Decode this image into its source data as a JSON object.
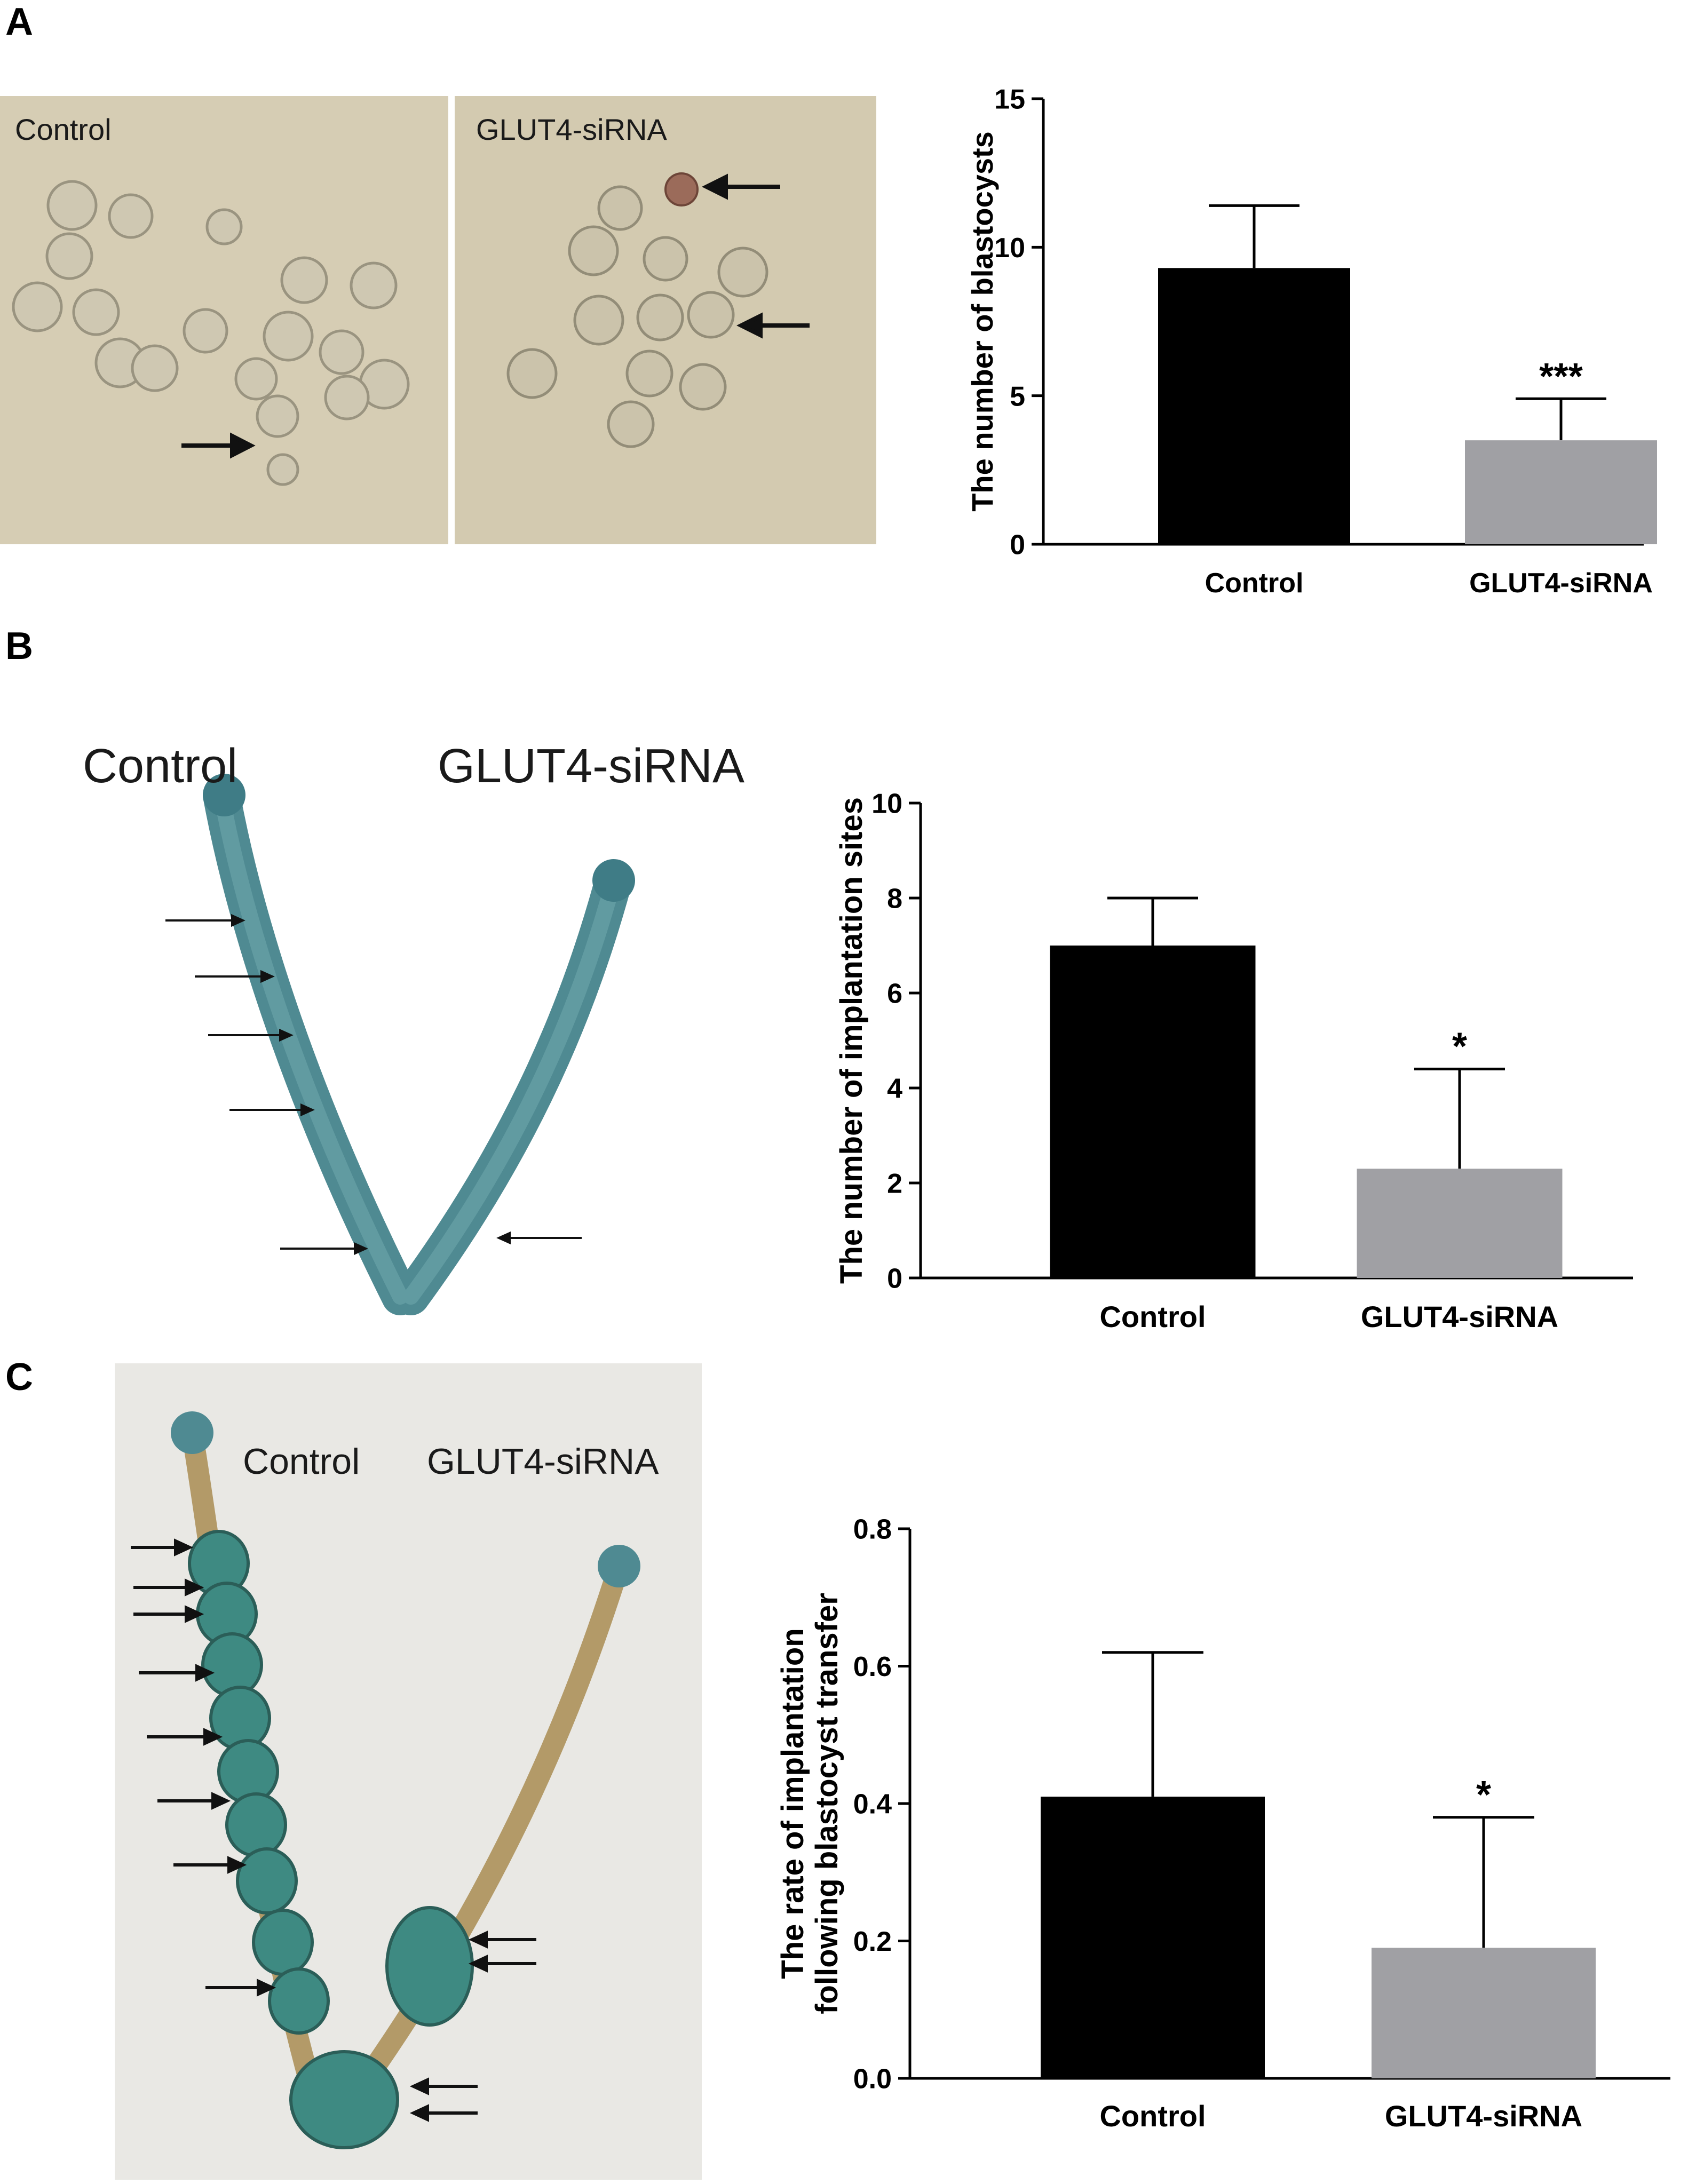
{
  "panels": [
    {
      "letter": "A",
      "photo_labels": [
        "Control",
        "GLUT4-siRNA"
      ]
    },
    {
      "letter": "B",
      "photo_labels": [
        "Control",
        "GLUT4-siRNA"
      ]
    },
    {
      "letter": "C",
      "photo_labels": [
        "Control",
        "GLUT4-siRNA"
      ]
    }
  ],
  "colors": {
    "control_bar": "#000000",
    "sirna_bar": "#a0a0a4",
    "blastocyst_bg": "#d6cdb4",
    "uterus_bg_b": "#ffffff",
    "uterus_bg_c": "#e9e8e4",
    "uterus_blue": "#4f8a92"
  },
  "chart_data": [
    {
      "type": "bar",
      "categories": [
        "Control",
        "GLUT4-siRNA"
      ],
      "values": [
        9.3,
        3.5
      ],
      "errors": [
        2.1,
        1.4
      ],
      "significance": [
        "",
        "***"
      ],
      "ylabel": "The number of blastocysts",
      "ylim": [
        0,
        15
      ],
      "yticks": [
        0,
        5,
        10,
        15
      ],
      "ytick_labels": [
        "0",
        "5",
        "10",
        "15"
      ]
    },
    {
      "type": "bar",
      "categories": [
        "Control",
        "GLUT4-siRNA"
      ],
      "values": [
        7.0,
        2.3
      ],
      "errors": [
        1.0,
        2.1
      ],
      "significance": [
        "",
        "*"
      ],
      "ylabel": "The number of implantation sites",
      "ylim": [
        0,
        10
      ],
      "yticks": [
        0,
        2,
        4,
        6,
        8,
        10
      ],
      "ytick_labels": [
        "0",
        "2",
        "4",
        "6",
        "8",
        "10"
      ]
    },
    {
      "type": "bar",
      "categories": [
        "Control",
        "GLUT4-siRNA"
      ],
      "values": [
        0.41,
        0.19
      ],
      "errors": [
        0.21,
        0.19
      ],
      "significance": [
        "",
        "*"
      ],
      "ylabel_lines": [
        "The rate of implantation",
        "following blastocyst transfer"
      ],
      "ylim": [
        0,
        0.8
      ],
      "yticks": [
        0,
        0.2,
        0.4,
        0.6,
        0.8
      ],
      "ytick_labels": [
        "0.0",
        "0.2",
        "0.4",
        "0.6",
        "0.8"
      ]
    }
  ]
}
